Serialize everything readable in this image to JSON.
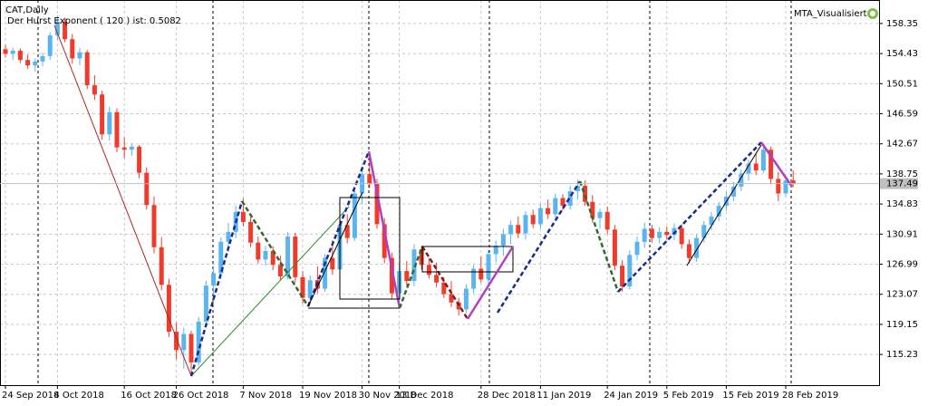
{
  "chart_data": {
    "type": "candlestick",
    "title": "CAT,Daily",
    "subtitle": "Der Hurst Exponent ( 120 ) ist: 0.5082",
    "indicator_label": "MTA_Visualisiert",
    "up_color": "#5ab4ef",
    "down_color": "#ef3a2c",
    "grid": true,
    "last_price": 137.49,
    "ylim": [
      111.23,
      161.41
    ],
    "yticks": [
      115.23,
      119.15,
      123.07,
      126.99,
      130.91,
      134.83,
      138.75,
      142.67,
      146.59,
      150.51,
      154.43,
      158.35
    ],
    "categories": [
      "24 Sep 2018",
      null,
      null,
      null,
      null,
      null,
      null,
      "4 Oct 2018",
      null,
      null,
      null,
      null,
      null,
      null,
      null,
      null,
      "16 Oct 2018",
      null,
      null,
      null,
      null,
      null,
      null,
      "26 Oct 2018",
      null,
      null,
      null,
      null,
      null,
      null,
      null,
      null,
      "7 Nov 2018",
      null,
      null,
      null,
      null,
      null,
      null,
      null,
      "19 Nov 2018",
      null,
      null,
      null,
      null,
      null,
      null,
      null,
      "30 Nov 2018",
      null,
      null,
      null,
      null,
      "13 Dec 2018",
      null,
      null,
      null,
      null,
      null,
      null,
      null,
      null,
      null,
      null,
      "28 Dec 2018",
      null,
      null,
      null,
      null,
      null,
      null,
      null,
      "11 Jan 2019",
      null,
      null,
      null,
      null,
      null,
      null,
      null,
      null,
      "24 Jan 2019",
      null,
      null,
      null,
      null,
      null,
      null,
      null,
      "5 Feb 2019",
      null,
      null,
      null,
      null,
      null,
      null,
      null,
      "15 Feb 2019",
      null,
      null,
      null,
      null,
      null,
      null,
      null,
      "28 Feb 2019",
      null
    ],
    "candles": [
      [
        155.0,
        155.6,
        153.9,
        154.4
      ],
      [
        154.4,
        155.2,
        153.6,
        154.8
      ],
      [
        154.8,
        155.1,
        153.2,
        153.6
      ],
      [
        153.6,
        154.3,
        152.4,
        152.9
      ],
      [
        152.9,
        153.8,
        152.1,
        153.4
      ],
      [
        153.4,
        154.5,
        152.8,
        154.1
      ],
      [
        154.1,
        157.2,
        153.6,
        156.8
      ],
      [
        156.8,
        159.4,
        156.2,
        158.6
      ],
      [
        158.6,
        159.1,
        155.9,
        156.3
      ],
      [
        156.3,
        157.0,
        153.1,
        153.8
      ],
      [
        153.8,
        155.2,
        152.9,
        154.6
      ],
      [
        154.6,
        154.9,
        149.8,
        150.3
      ],
      [
        150.3,
        151.6,
        148.4,
        149.1
      ],
      [
        149.1,
        149.6,
        143.2,
        143.9
      ],
      [
        143.9,
        147.5,
        143.1,
        146.8
      ],
      [
        146.8,
        147.3,
        141.6,
        142.2
      ],
      [
        142.2,
        143.5,
        140.8,
        141.9
      ],
      [
        141.9,
        142.7,
        141.1,
        142.3
      ],
      [
        142.3,
        142.5,
        138.2,
        138.9
      ],
      [
        138.9,
        139.6,
        134.1,
        134.7
      ],
      [
        134.7,
        135.8,
        128.4,
        129.2
      ],
      [
        129.2,
        130.5,
        123.6,
        124.3
      ],
      [
        124.3,
        125.1,
        117.5,
        118.2
      ],
      [
        118.2,
        119.4,
        114.6,
        115.8
      ],
      [
        115.8,
        118.7,
        113.4,
        117.9
      ],
      [
        117.9,
        118.3,
        112.7,
        114.2
      ],
      [
        114.2,
        120.1,
        113.8,
        119.5
      ],
      [
        119.5,
        124.8,
        119.1,
        124.2
      ],
      [
        124.2,
        126.6,
        122.9,
        125.8
      ],
      [
        125.8,
        130.5,
        125.1,
        129.9
      ],
      [
        129.9,
        132.4,
        128.6,
        131.2
      ],
      [
        131.2,
        134.6,
        130.4,
        133.8
      ],
      [
        133.8,
        135.6,
        131.9,
        132.5
      ],
      [
        132.5,
        133.1,
        129.2,
        129.8
      ],
      [
        129.8,
        130.6,
        127.1,
        127.6
      ],
      [
        127.6,
        129.4,
        126.8,
        128.7
      ],
      [
        128.7,
        129.3,
        126.2,
        126.9
      ],
      [
        126.9,
        128.1,
        124.9,
        125.4
      ],
      [
        125.4,
        131.2,
        125.0,
        130.6
      ],
      [
        130.6,
        131.1,
        124.6,
        125.3
      ],
      [
        125.3,
        126.1,
        121.8,
        122.6
      ],
      [
        122.6,
        125.5,
        122.1,
        124.9
      ],
      [
        124.9,
        126.7,
        123.2,
        123.8
      ],
      [
        123.8,
        128.3,
        123.4,
        127.8
      ],
      [
        127.8,
        130.1,
        125.6,
        126.3
      ],
      [
        126.3,
        132.8,
        125.9,
        132.1
      ],
      [
        132.1,
        133.5,
        129.7,
        130.4
      ],
      [
        130.4,
        136.9,
        130.0,
        136.2
      ],
      [
        136.2,
        139.6,
        134.8,
        138.7
      ],
      [
        138.7,
        141.6,
        136.9,
        137.5
      ],
      [
        137.5,
        138.1,
        131.6,
        132.2
      ],
      [
        132.2,
        133.0,
        127.1,
        127.8
      ],
      [
        127.8,
        128.5,
        122.4,
        123.2
      ],
      [
        123.2,
        126.9,
        121.6,
        126.1
      ],
      [
        126.1,
        127.4,
        124.2,
        124.8
      ],
      [
        124.8,
        129.6,
        124.1,
        128.9
      ],
      [
        128.9,
        129.4,
        126.3,
        126.9
      ],
      [
        126.9,
        127.8,
        125.1,
        125.6
      ],
      [
        125.6,
        127.2,
        124.0,
        124.6
      ],
      [
        124.6,
        125.3,
        122.6,
        123.1
      ],
      [
        123.1,
        124.8,
        121.4,
        122.0
      ],
      [
        122.0,
        122.6,
        120.3,
        121.1
      ],
      [
        121.1,
        124.4,
        120.6,
        123.8
      ],
      [
        123.8,
        126.9,
        123.2,
        126.4
      ],
      [
        126.4,
        128.0,
        124.6,
        125.0
      ],
      [
        125.0,
        128.9,
        124.4,
        128.3
      ],
      [
        128.3,
        130.1,
        127.2,
        129.4
      ],
      [
        129.4,
        131.6,
        128.1,
        130.9
      ],
      [
        130.9,
        132.7,
        129.6,
        132.1
      ],
      [
        132.1,
        133.2,
        130.4,
        131.0
      ],
      [
        131.0,
        133.9,
        130.2,
        133.4
      ],
      [
        133.4,
        134.1,
        131.7,
        132.2
      ],
      [
        132.2,
        134.8,
        131.6,
        134.3
      ],
      [
        134.3,
        135.4,
        132.9,
        133.5
      ],
      [
        133.5,
        136.2,
        133.0,
        135.6
      ],
      [
        135.6,
        136.1,
        134.0,
        134.6
      ],
      [
        134.6,
        137.2,
        134.1,
        136.5
      ],
      [
        136.5,
        138.0,
        135.4,
        137.2
      ],
      [
        137.2,
        137.9,
        134.6,
        135.1
      ],
      [
        135.1,
        136.0,
        132.4,
        133.0
      ],
      [
        133.0,
        134.2,
        131.6,
        133.8
      ],
      [
        133.8,
        134.5,
        130.9,
        131.5
      ],
      [
        131.5,
        132.1,
        126.2,
        126.8
      ],
      [
        126.8,
        127.5,
        123.4,
        124.1
      ],
      [
        124.1,
        128.8,
        123.7,
        128.2
      ],
      [
        128.2,
        130.6,
        127.5,
        129.9
      ],
      [
        129.9,
        132.4,
        129.1,
        131.6
      ],
      [
        131.6,
        132.1,
        129.8,
        130.4
      ],
      [
        130.4,
        131.8,
        129.7,
        131.2
      ],
      [
        131.2,
        131.9,
        130.2,
        130.8
      ],
      [
        130.8,
        132.3,
        130.1,
        131.7
      ],
      [
        131.7,
        132.2,
        129.0,
        129.6
      ],
      [
        129.6,
        130.2,
        127.1,
        127.8
      ],
      [
        127.8,
        130.9,
        127.3,
        130.4
      ],
      [
        130.4,
        132.6,
        129.8,
        132.1
      ],
      [
        132.1,
        133.8,
        131.4,
        133.2
      ],
      [
        133.2,
        135.1,
        132.6,
        134.6
      ],
      [
        134.6,
        136.4,
        133.9,
        135.8
      ],
      [
        135.8,
        137.7,
        135.2,
        137.1
      ],
      [
        137.1,
        139.3,
        136.5,
        138.8
      ],
      [
        138.8,
        140.6,
        137.9,
        140.1
      ],
      [
        140.1,
        141.4,
        138.6,
        139.2
      ],
      [
        139.2,
        142.6,
        138.9,
        141.9
      ],
      [
        141.9,
        142.3,
        137.4,
        138.1
      ],
      [
        138.1,
        139.0,
        135.2,
        136.2
      ],
      [
        136.2,
        138.6,
        135.8,
        137.9
      ],
      [
        137.9,
        139.2,
        137.0,
        137.5
      ]
    ]
  }
}
